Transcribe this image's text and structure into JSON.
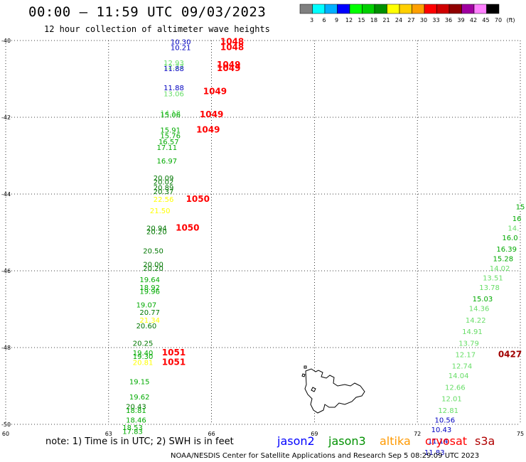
{
  "header": {
    "title": "00:00 — 11:59 UTC 09/03/2023",
    "subtitle": "12 hour collection of altimeter wave heights"
  },
  "scale": {
    "labels": [
      "3",
      "6",
      "9",
      "12",
      "15",
      "18",
      "21",
      "24",
      "27",
      "30",
      "33",
      "36",
      "39",
      "42",
      "45",
      "70",
      "(ft)"
    ],
    "colors": [
      "#808080",
      "#00ffff",
      "#00b0ff",
      "#0000ff",
      "#00ff00",
      "#00d000",
      "#009000",
      "#ffff00",
      "#ffd000",
      "#ffa000",
      "#ff0000",
      "#d00000",
      "#900000",
      "#a000a0",
      "#ff80ff",
      "#000000"
    ]
  },
  "footer": {
    "note": "note: 1) Time is in UTC; 2) SWH is in feet",
    "credit": "NOAA/NESDIS Center for Satellite Applications and Research   Sep  5 08:29:09 UTC 2023",
    "missions": [
      {
        "name": "jason2",
        "color": "#0000ff"
      },
      {
        "name": "jason3",
        "color": "#009000"
      },
      {
        "name": "altika",
        "color": "#ff9900"
      },
      {
        "name": "cryosat",
        "color": "#ff0000"
      },
      {
        "name": "s3a",
        "color": "#b00000"
      }
    ]
  },
  "chart_data": {
    "type": "scatter",
    "xlim": [
      60,
      75
    ],
    "ylim": [
      -50,
      -40
    ],
    "x_ticks": [
      "60",
      "63",
      "66",
      "69",
      "72",
      "75"
    ],
    "y_ticks": [
      "-40",
      "-42",
      "-44",
      "-46",
      "-48",
      "-50"
    ],
    "grid": true,
    "points": [
      {
        "x": 65.1,
        "y": -40.1,
        "v": "10.30",
        "c": "#0000c0"
      },
      {
        "x": 65.1,
        "y": -40.25,
        "v": "10.21",
        "c": "#0000c0"
      },
      {
        "x": 64.9,
        "y": -40.65,
        "v": "12.93",
        "c": "#66dd66"
      },
      {
        "x": 64.9,
        "y": -40.75,
        "v": "12.77",
        "c": "#66dd66"
      },
      {
        "x": 64.9,
        "y": -40.8,
        "v": "11.88",
        "c": "#0000c0"
      },
      {
        "x": 64.9,
        "y": -41.3,
        "v": "11.88",
        "c": "#0000c0"
      },
      {
        "x": 64.9,
        "y": -41.45,
        "v": "13.06",
        "c": "#66dd66"
      },
      {
        "x": 64.8,
        "y": -41.95,
        "v": "14.18",
        "c": "#66dd66"
      },
      {
        "x": 64.8,
        "y": -42.0,
        "v": "15.06",
        "c": "#00aa00"
      },
      {
        "x": 64.8,
        "y": -42.4,
        "v": "15.91",
        "c": "#00aa00"
      },
      {
        "x": 64.8,
        "y": -42.55,
        "v": "15.76",
        "c": "#00aa00"
      },
      {
        "x": 64.75,
        "y": -42.7,
        "v": "16.57",
        "c": "#00aa00"
      },
      {
        "x": 64.7,
        "y": -42.85,
        "v": "17.11",
        "c": "#00aa00"
      },
      {
        "x": 64.7,
        "y": -43.2,
        "v": "16.97",
        "c": "#00aa00"
      },
      {
        "x": 64.6,
        "y": -43.65,
        "v": "20.09",
        "c": "#007700"
      },
      {
        "x": 64.6,
        "y": -43.75,
        "v": "20.02",
        "c": "#007700"
      },
      {
        "x": 64.6,
        "y": -43.9,
        "v": "20.89",
        "c": "#007700"
      },
      {
        "x": 64.6,
        "y": -44.0,
        "v": "20.37",
        "c": "#007700"
      },
      {
        "x": 64.6,
        "y": -44.2,
        "v": "22.56",
        "c": "#ffff00"
      },
      {
        "x": 64.5,
        "y": -44.5,
        "v": "21.50",
        "c": "#ffff00"
      },
      {
        "x": 64.4,
        "y": -44.95,
        "v": "20.94",
        "c": "#007700"
      },
      {
        "x": 64.4,
        "y": -45.05,
        "v": "20.20",
        "c": "#007700"
      },
      {
        "x": 64.3,
        "y": -45.55,
        "v": "20.50",
        "c": "#007700"
      },
      {
        "x": 64.3,
        "y": -45.9,
        "v": "20.00",
        "c": "#007700"
      },
      {
        "x": 64.3,
        "y": -46.0,
        "v": "20.20",
        "c": "#007700"
      },
      {
        "x": 64.2,
        "y": -46.3,
        "v": "19.64",
        "c": "#00aa00"
      },
      {
        "x": 64.2,
        "y": -46.5,
        "v": "18.92",
        "c": "#00aa00"
      },
      {
        "x": 64.2,
        "y": -46.6,
        "v": "19.96",
        "c": "#00aa00"
      },
      {
        "x": 64.1,
        "y": -46.95,
        "v": "19.07",
        "c": "#00aa00"
      },
      {
        "x": 64.2,
        "y": -47.15,
        "v": "20.77",
        "c": "#007700"
      },
      {
        "x": 64.2,
        "y": -47.35,
        "v": "21.34",
        "c": "#ffff00"
      },
      {
        "x": 64.1,
        "y": -47.5,
        "v": "20.60",
        "c": "#007700"
      },
      {
        "x": 64.0,
        "y": -47.95,
        "v": "20.25",
        "c": "#007700"
      },
      {
        "x": 64.0,
        "y": -48.2,
        "v": "19.40",
        "c": "#00aa00"
      },
      {
        "x": 64.0,
        "y": -48.3,
        "v": "19.30",
        "c": "#00aa00"
      },
      {
        "x": 64.0,
        "y": -48.45,
        "v": "20.81",
        "c": "#ffff00"
      },
      {
        "x": 63.9,
        "y": -48.95,
        "v": "19.15",
        "c": "#00aa00"
      },
      {
        "x": 63.9,
        "y": -49.35,
        "v": "19.62",
        "c": "#00aa00"
      },
      {
        "x": 63.8,
        "y": -49.6,
        "v": "20.43",
        "c": "#007700"
      },
      {
        "x": 63.8,
        "y": -49.7,
        "v": "18.81",
        "c": "#00aa00"
      },
      {
        "x": 63.8,
        "y": -49.95,
        "v": "18.46",
        "c": "#00aa00"
      },
      {
        "x": 63.7,
        "y": -50.15,
        "v": "18.53",
        "c": "#00aa00"
      },
      {
        "x": 63.7,
        "y": -50.25,
        "v": "17.83",
        "c": "#00aa00"
      },
      {
        "x": 75.0,
        "y": -44.4,
        "v": "15",
        "c": "#00aa00"
      },
      {
        "x": 74.9,
        "y": -44.7,
        "v": "16",
        "c": "#00aa00"
      },
      {
        "x": 74.8,
        "y": -44.95,
        "v": "14.",
        "c": "#66dd66"
      },
      {
        "x": 74.7,
        "y": -45.2,
        "v": "16.0",
        "c": "#00aa00"
      },
      {
        "x": 74.6,
        "y": -45.5,
        "v": "16.39",
        "c": "#00aa00"
      },
      {
        "x": 74.5,
        "y": -45.75,
        "v": "15.28",
        "c": "#00aa00"
      },
      {
        "x": 74.4,
        "y": -46.0,
        "v": "14.02",
        "c": "#66dd66"
      },
      {
        "x": 74.2,
        "y": -46.25,
        "v": "13.51",
        "c": "#66dd66"
      },
      {
        "x": 74.1,
        "y": -46.5,
        "v": "13.78",
        "c": "#66dd66"
      },
      {
        "x": 73.9,
        "y": -46.8,
        "v": "15.03",
        "c": "#00aa00"
      },
      {
        "x": 73.8,
        "y": -47.05,
        "v": "14.36",
        "c": "#66dd66"
      },
      {
        "x": 73.7,
        "y": -47.35,
        "v": "14.22",
        "c": "#66dd66"
      },
      {
        "x": 73.6,
        "y": -47.65,
        "v": "14.91",
        "c": "#66dd66"
      },
      {
        "x": 73.5,
        "y": -47.95,
        "v": "13.79",
        "c": "#66dd66"
      },
      {
        "x": 73.4,
        "y": -48.25,
        "v": "12.17",
        "c": "#66dd66"
      },
      {
        "x": 73.3,
        "y": -48.55,
        "v": "12.74",
        "c": "#66dd66"
      },
      {
        "x": 73.2,
        "y": -48.8,
        "v": "14.04",
        "c": "#66dd66"
      },
      {
        "x": 73.1,
        "y": -49.1,
        "v": "12.66",
        "c": "#66dd66"
      },
      {
        "x": 73.0,
        "y": -49.4,
        "v": "12.01",
        "c": "#66dd66"
      },
      {
        "x": 72.9,
        "y": -49.7,
        "v": "12.81",
        "c": "#66dd66"
      },
      {
        "x": 72.8,
        "y": -49.95,
        "v": "10.56",
        "c": "#0000c0"
      },
      {
        "x": 72.7,
        "y": -50.2,
        "v": "10.43",
        "c": "#0000c0"
      },
      {
        "x": 72.6,
        "y": -50.5,
        "v": "11.14",
        "c": "#0000c0"
      },
      {
        "x": 72.5,
        "y": -50.8,
        "v": "11.83",
        "c": "#0000c0"
      }
    ],
    "pass_labels": [
      {
        "x": 66.6,
        "y": -40.1,
        "text": "1048",
        "c": "#ff0000"
      },
      {
        "x": 66.6,
        "y": -40.25,
        "text": "1048",
        "c": "#ff0000"
      },
      {
        "x": 66.5,
        "y": -40.7,
        "text": "1049",
        "c": "#ff0000"
      },
      {
        "x": 66.5,
        "y": -40.8,
        "text": "1049",
        "c": "#ff0000"
      },
      {
        "x": 66.1,
        "y": -41.4,
        "text": "1049",
        "c": "#ff0000"
      },
      {
        "x": 66.0,
        "y": -42.0,
        "text": "1049",
        "c": "#ff0000"
      },
      {
        "x": 65.9,
        "y": -42.4,
        "text": "1049",
        "c": "#ff0000"
      },
      {
        "x": 65.6,
        "y": -44.2,
        "text": "1050",
        "c": "#ff0000"
      },
      {
        "x": 65.3,
        "y": -44.95,
        "text": "1050",
        "c": "#ff0000"
      },
      {
        "x": 64.9,
        "y": -48.2,
        "text": "1051",
        "c": "#ff0000"
      },
      {
        "x": 64.9,
        "y": -48.45,
        "text": "1051",
        "c": "#ff0000"
      },
      {
        "x": 74.7,
        "y": -48.25,
        "text": "0427",
        "c": "#a00000"
      }
    ]
  }
}
